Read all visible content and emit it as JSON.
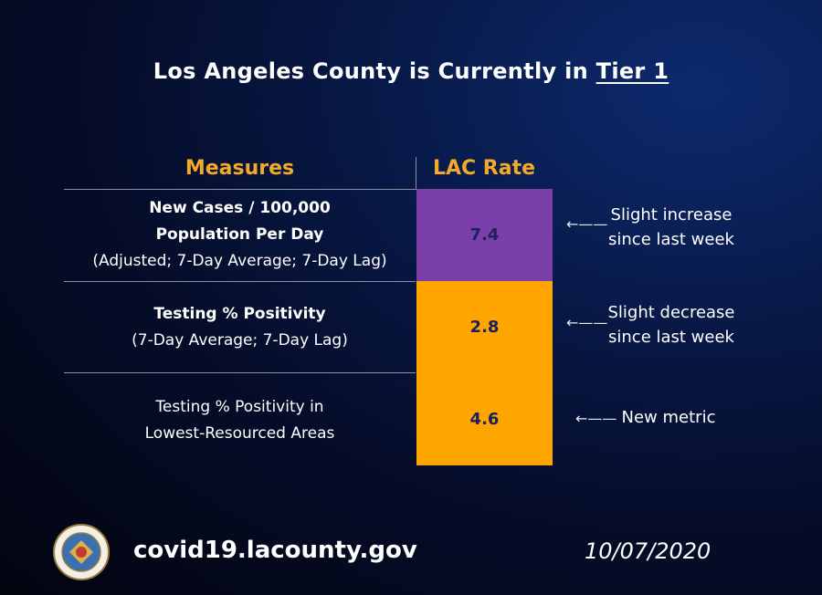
{
  "title": {
    "prefix": "Los Angeles County is Currently in",
    "tier": "Tier 1"
  },
  "table": {
    "header_measures": "Measures",
    "header_rate": "LAC Rate",
    "rows": [
      {
        "measure_line1": "New Cases / 100,000",
        "measure_line2": "Population Per Day",
        "measure_line3": "(Adjusted; 7-Day Average; 7-Day Lag)",
        "rate": "7.4",
        "rate_color": "#7b3fa9",
        "rate_text_color": "#1b1f5c",
        "note_line1": "Slight increase",
        "note_line2": "since last week"
      },
      {
        "measure_line1": "Testing % Positivity",
        "measure_line2": "(7-Day Average; 7-Day Lag)",
        "rate": "2.8",
        "rate_color": "#ffa500",
        "rate_text_color": "#1b1f5c",
        "note_line1": "Slight decrease",
        "note_line2": "since last week"
      },
      {
        "measure_line1": "Testing % Positivity in",
        "measure_line2": "Lowest-Resourced Areas",
        "rate": "4.6",
        "rate_color": "#ffa500",
        "rate_text_color": "#1b1f5c",
        "note_line1": "New metric"
      }
    ],
    "arrow_glyph": "←——"
  },
  "footer": {
    "website": "covid19.lacounty.gov",
    "date": "10/07/2020",
    "seal_icon": "county-seal-icon"
  },
  "colors": {
    "accent_header": "#f4a928",
    "divider": "#8a8fa3"
  }
}
